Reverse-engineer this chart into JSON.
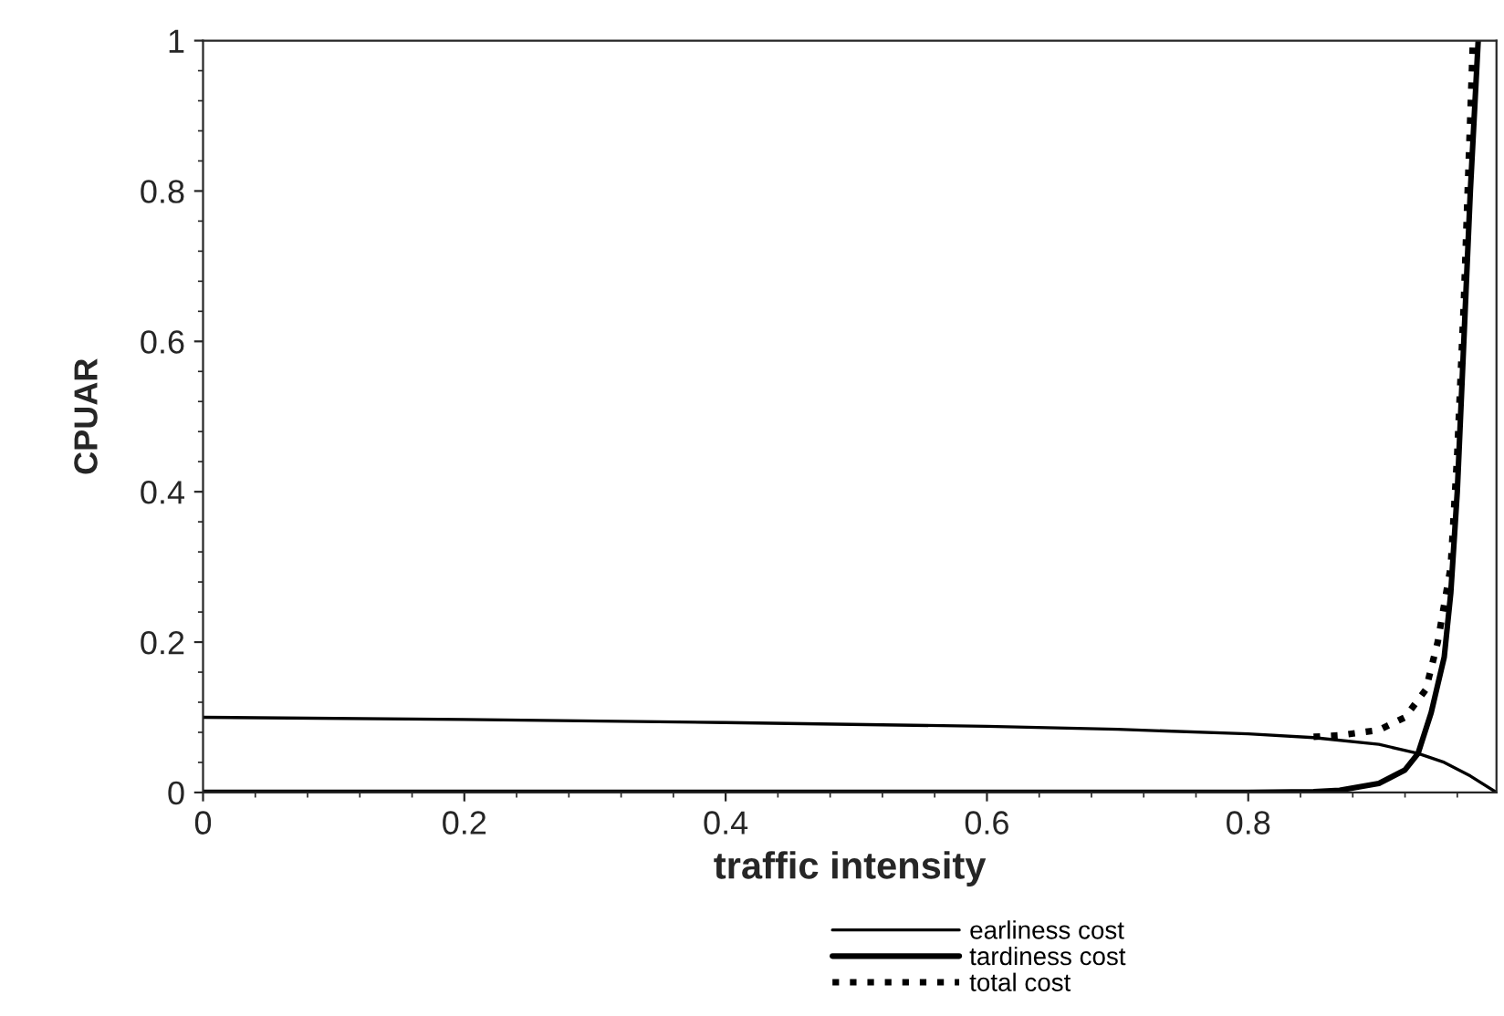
{
  "chart_data": {
    "type": "line",
    "xlabel": "traffic intensity",
    "ylabel": "CPUAR",
    "xlim": [
      0,
      0.99
    ],
    "ylim": [
      0,
      1
    ],
    "xticks": [
      0,
      0.2,
      0.4,
      0.6,
      0.8
    ],
    "yticks": [
      0,
      0.2,
      0.4,
      0.6,
      0.8,
      1
    ],
    "grid": false,
    "legend": "bottom",
    "series": [
      {
        "name": "earliness cost",
        "color": "#000000",
        "line_style": "solid",
        "x": [
          0,
          0.2,
          0.4,
          0.6,
          0.7,
          0.8,
          0.85,
          0.9,
          0.93,
          0.95,
          0.97,
          0.99
        ],
        "values": [
          0.1,
          0.097,
          0.093,
          0.088,
          0.084,
          0.078,
          0.073,
          0.064,
          0.052,
          0.04,
          0.022,
          0
        ]
      },
      {
        "name": "tardiness cost",
        "color": "#000000",
        "line_style": "solid",
        "x": [
          0,
          0.8,
          0.85,
          0.87,
          0.9,
          0.92,
          0.93,
          0.94,
          0.95,
          0.955,
          0.96,
          0.965,
          0.97,
          0.976
        ],
        "values": [
          0,
          0,
          0.001,
          0.003,
          0.012,
          0.03,
          0.052,
          0.106,
          0.18,
          0.265,
          0.4,
          0.6,
          0.8,
          1
        ]
      },
      {
        "name": "total cost",
        "color": "#000000",
        "line_style": "dotted",
        "x": [
          0.85,
          0.87,
          0.9,
          0.92,
          0.936,
          0.945,
          0.955,
          0.96,
          0.965,
          0.968,
          0.972
        ],
        "values": [
          0.074,
          0.076,
          0.083,
          0.1,
          0.137,
          0.2,
          0.3,
          0.45,
          0.65,
          0.8,
          1
        ]
      }
    ]
  }
}
